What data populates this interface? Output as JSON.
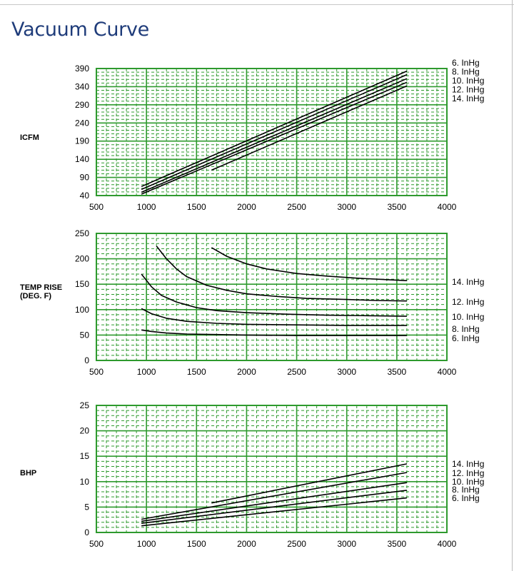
{
  "page": {
    "title": "Vacuum Curve"
  },
  "colors": {
    "grid": "#2e9a2e",
    "curve": "#000000",
    "title": "#1f3c7a"
  },
  "chart_data": [
    {
      "type": "line",
      "ylabel": "ICFM",
      "xlabel": "",
      "xlim": [
        500,
        4000
      ],
      "ylim": [
        40,
        390
      ],
      "xticks": [
        500,
        1000,
        1500,
        2000,
        2500,
        3000,
        3500,
        4000
      ],
      "yticks": [
        40,
        90,
        140,
        190,
        240,
        290,
        340,
        390
      ],
      "legend": [
        "6. InHg",
        "8. InHg",
        "10. InHg",
        "12. InHg",
        "14. InHg"
      ],
      "legend_position": "right",
      "series": [
        {
          "name": "6. InHg",
          "x": [
            950,
            3600
          ],
          "y": [
            65,
            383
          ]
        },
        {
          "name": "8. InHg",
          "x": [
            950,
            3600
          ],
          "y": [
            57,
            373
          ]
        },
        {
          "name": "10. InHg",
          "x": [
            950,
            3600
          ],
          "y": [
            49,
            362
          ]
        },
        {
          "name": "12. InHg",
          "x": [
            950,
            3600
          ],
          "y": [
            44,
            352
          ]
        },
        {
          "name": "14. InHg",
          "x": [
            1650,
            3600
          ],
          "y": [
            110,
            342
          ]
        }
      ]
    },
    {
      "type": "line",
      "ylabel": "TEMP RISE (DEG. F)",
      "ylabel_lines": [
        "TEMP RISE",
        "(DEG. F)"
      ],
      "xlabel": "",
      "xlim": [
        500,
        4000
      ],
      "ylim": [
        0,
        250
      ],
      "xticks": [
        500,
        1000,
        1500,
        2000,
        2500,
        3000,
        3500,
        4000
      ],
      "yticks": [
        0,
        50,
        100,
        150,
        200,
        250
      ],
      "legend": [
        "14. InHg",
        "12. InHg",
        "10. InHg",
        "8. InHg",
        "6. InHg"
      ],
      "legend_position": "right",
      "series": [
        {
          "name": "14. InHg",
          "x": [
            1650,
            1800,
            2000,
            2200,
            2500,
            2800,
            3100,
            3400,
            3600
          ],
          "y": [
            222,
            205,
            190,
            180,
            171,
            166,
            162,
            159,
            157
          ]
        },
        {
          "name": "12. InHg",
          "x": [
            1100,
            1200,
            1300,
            1400,
            1600,
            1800,
            2000,
            2300,
            2600,
            3000,
            3300,
            3600
          ],
          "y": [
            225,
            200,
            180,
            165,
            148,
            138,
            131,
            126,
            122,
            120,
            118,
            117
          ]
        },
        {
          "name": "10. InHg",
          "x": [
            950,
            1050,
            1150,
            1300,
            1500,
            1700,
            2000,
            2400,
            2800,
            3200,
            3600
          ],
          "y": [
            170,
            145,
            128,
            115,
            104,
            98,
            94,
            91,
            89,
            88,
            87
          ]
        },
        {
          "name": "8. InHg",
          "x": [
            950,
            1050,
            1200,
            1400,
            1700,
            2000,
            2500,
            3000,
            3600
          ],
          "y": [
            102,
            92,
            83,
            77,
            73,
            71,
            70,
            69,
            69
          ]
        },
        {
          "name": "6. InHg",
          "x": [
            950,
            1050,
            1200,
            1400,
            1700,
            2000,
            2500,
            3000,
            3600
          ],
          "y": [
            60,
            57,
            54,
            52,
            51,
            50,
            49,
            49,
            49
          ]
        }
      ]
    },
    {
      "type": "line",
      "ylabel": "BHP",
      "xlabel": "",
      "xlim": [
        500,
        4000
      ],
      "ylim": [
        0,
        25
      ],
      "xticks": [
        500,
        1000,
        1500,
        2000,
        2500,
        3000,
        3500,
        4000
      ],
      "yticks": [
        0,
        5,
        10,
        15,
        20,
        25
      ],
      "legend": [
        "14. InHg",
        "12. InHg",
        "10. InHg",
        "8. InHg",
        "6. InHg"
      ],
      "legend_position": "right",
      "series": [
        {
          "name": "14. InHg",
          "x": [
            1650,
            3600
          ],
          "y": [
            5.8,
            13.5
          ]
        },
        {
          "name": "12. InHg",
          "x": [
            950,
            3600
          ],
          "y": [
            2.6,
            11.8
          ]
        },
        {
          "name": "10. InHg",
          "x": [
            950,
            3600
          ],
          "y": [
            2.2,
            9.8
          ]
        },
        {
          "name": "8. InHg",
          "x": [
            950,
            3600
          ],
          "y": [
            1.8,
            8.3
          ]
        },
        {
          "name": "6. InHg",
          "x": [
            950,
            3600
          ],
          "y": [
            1.3,
            6.8
          ]
        }
      ]
    }
  ]
}
